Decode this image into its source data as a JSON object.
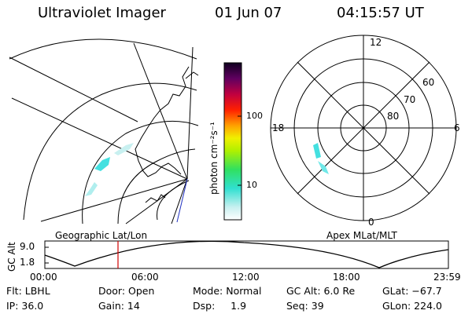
{
  "header": {
    "instrument": "Ultraviolet Imager",
    "date": "01 Jun 07",
    "time": "04:15:57 UT"
  },
  "colorbar": {
    "unit_label": "photon cm⁻²s⁻¹",
    "ticks": [
      "100",
      "10"
    ]
  },
  "geo_panel": {
    "caption": "Geographic Lat/Lon"
  },
  "polar_panel": {
    "caption": "Apex MLat/MLT",
    "mlt_labels": [
      "12",
      "18",
      "6",
      "0"
    ],
    "lat_labels": [
      "60",
      "70",
      "80"
    ]
  },
  "orbit_plot": {
    "ylabel": "GC Alt",
    "yticks": [
      "9.0",
      "1.8"
    ],
    "xticks": [
      "00:00",
      "06:00",
      "12:00",
      "18:00",
      "23:59"
    ],
    "marker_time": "04:15:57"
  },
  "footer": {
    "flt": "Flt: LBHL",
    "ip": "IP: 36.0",
    "door": "Door: Open",
    "gain": "Gain: 14",
    "mode": "Mode: Normal",
    "dsp": "Dsp:     1.9",
    "gc_alt": "GC Alt: 6.0 Re",
    "seq": "Seq: 39",
    "glat": "GLat: −67.7",
    "glon": "GLon: 224.0"
  },
  "colors": {
    "marker": "#d00000",
    "aurora": "#44e0e0"
  }
}
